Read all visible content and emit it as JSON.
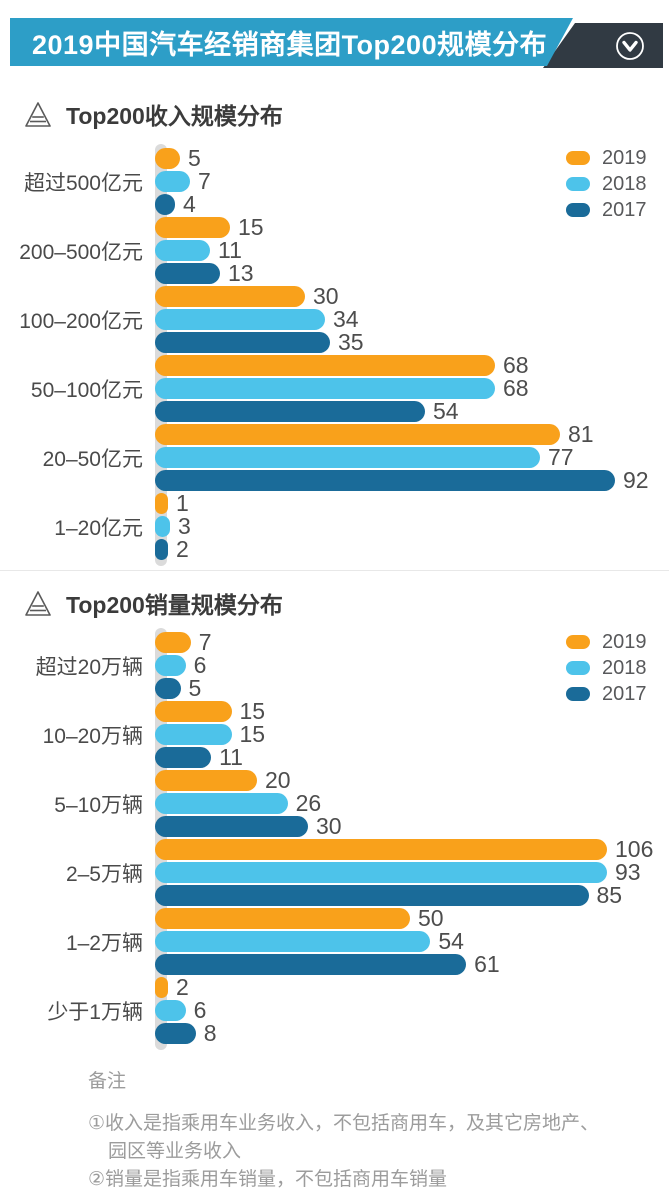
{
  "banner": {
    "title": "2019中国汽车经销商集团Top200规模分布",
    "bg_color": "#2D9EC7",
    "accent_color": "#313A43"
  },
  "legend": {
    "items": [
      {
        "label": "2019",
        "color": "#F9A11B"
      },
      {
        "label": "2018",
        "color": "#4DC3EA"
      },
      {
        "label": "2017",
        "color": "#1A6B99"
      }
    ]
  },
  "notes": {
    "heading": "备注",
    "lines": [
      "①收入是指乘用车业务收入，不包括商用车，及其它房地产、",
      "园区等业务收入",
      "②销量是指乘用车销量，不包括商用车销量"
    ]
  },
  "chart_data": [
    {
      "type": "bar",
      "orientation": "horizontal",
      "title": "Top200收入规模分布",
      "categories": [
        "超过500亿元",
        "200–500亿元",
        "100–200亿元",
        "50–100亿元",
        "20–50亿元",
        "1–20亿元"
      ],
      "series": [
        {
          "name": "2019",
          "color": "#F9A11B",
          "values": [
            5,
            15,
            30,
            68,
            81,
            1
          ]
        },
        {
          "name": "2018",
          "color": "#4DC3EA",
          "values": [
            7,
            11,
            34,
            68,
            77,
            3
          ]
        },
        {
          "name": "2017",
          "color": "#1A6B99",
          "values": [
            4,
            13,
            35,
            54,
            92,
            2
          ]
        }
      ],
      "value_labels": true,
      "legend_position": "top-right",
      "grid": false,
      "axis_bar_color": "#DBDBDB",
      "xlim": [
        0,
        110
      ]
    },
    {
      "type": "bar",
      "orientation": "horizontal",
      "title": "Top200销量规模分布",
      "categories": [
        "超过20万辆",
        "10–20万辆",
        "5–10万辆",
        "2–5万辆",
        "1–2万辆",
        "少于1万辆"
      ],
      "series": [
        {
          "name": "2019",
          "color": "#F9A11B",
          "values": [
            7,
            15,
            20,
            106,
            50,
            2
          ]
        },
        {
          "name": "2018",
          "color": "#4DC3EA",
          "values": [
            6,
            15,
            26,
            93,
            54,
            6
          ]
        },
        {
          "name": "2017",
          "color": "#1A6B99",
          "values": [
            5,
            11,
            30,
            85,
            61,
            8
          ]
        }
      ],
      "value_labels": true,
      "legend_position": "top-right",
      "grid": false,
      "axis_bar_color": "#DBDBDB",
      "xlim": [
        0,
        110
      ]
    }
  ]
}
